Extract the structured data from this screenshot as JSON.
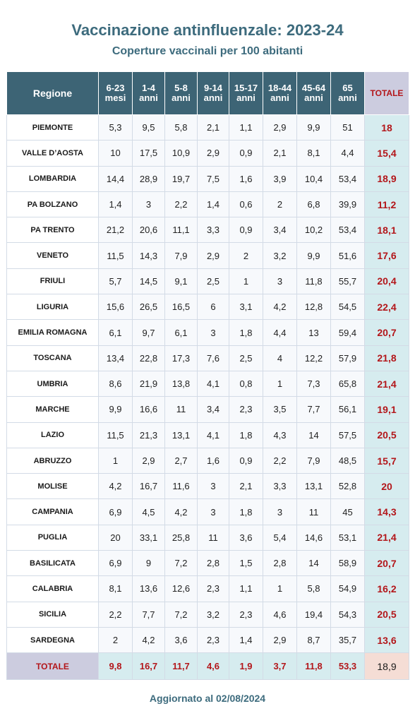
{
  "header": {
    "title": "Vaccinazione antinfluenzale: 2023-24",
    "subtitle": "Coperture vaccinali per 100 abitanti"
  },
  "footer": {
    "updated": "Aggiornato al 02/08/2024"
  },
  "colors": {
    "title": "#3d6b7d",
    "header_bg": "#3d6475",
    "totale_header_bg": "#ccccdf",
    "accent_red": "#b3161a",
    "total_column_bg": "#d6ecef",
    "grand_total_bg": "#f5ddd5"
  },
  "chart_data": {
    "type": "table",
    "title": "Vaccinazione antinfluenzale: 2023-24",
    "subtitle": "Coperture vaccinali per 100 abitanti",
    "columns": [
      {
        "line1": "Regione",
        "line2": ""
      },
      {
        "line1": "6-23",
        "line2": "mesi"
      },
      {
        "line1": "1-4",
        "line2": "anni"
      },
      {
        "line1": "5-8",
        "line2": "anni"
      },
      {
        "line1": "9-14",
        "line2": "anni"
      },
      {
        "line1": "15-17",
        "line2": "anni"
      },
      {
        "line1": "18-44",
        "line2": "anni"
      },
      {
        "line1": "45-64",
        "line2": "anni"
      },
      {
        "line1": "65",
        "line2": "anni"
      },
      {
        "line1": "TOTALE",
        "line2": ""
      }
    ],
    "rows": [
      {
        "region": "PIEMONTE",
        "values": [
          "5,3",
          "9,5",
          "5,8",
          "2,1",
          "1,1",
          "2,9",
          "9,9",
          "51"
        ],
        "total": "18"
      },
      {
        "region": "VALLE D’AOSTA",
        "values": [
          "10",
          "17,5",
          "10,9",
          "2,9",
          "0,9",
          "2,1",
          "8,1",
          "4,4"
        ],
        "total": "15,4"
      },
      {
        "region": "LOMBARDIA",
        "values": [
          "14,4",
          "28,9",
          "19,7",
          "7,5",
          "1,6",
          "3,9",
          "10,4",
          "53,4"
        ],
        "total": "18,9"
      },
      {
        "region": "PA BOLZANO",
        "values": [
          "1,4",
          "3",
          "2,2",
          "1,4",
          "0,6",
          "2",
          "6,8",
          "39,9"
        ],
        "total": "11,2"
      },
      {
        "region": "PA TRENTO",
        "values": [
          "21,2",
          "20,6",
          "11,1",
          "3,3",
          "0,9",
          "3,4",
          "10,2",
          "53,4"
        ],
        "total": "18,1"
      },
      {
        "region": "VENETO",
        "values": [
          "11,5",
          "14,3",
          "7,9",
          "2,9",
          "2",
          "3,2",
          "9,9",
          "51,6"
        ],
        "total": "17,6"
      },
      {
        "region": "FRIULI",
        "values": [
          "5,7",
          "14,5",
          "9,1",
          "2,5",
          "1",
          "3",
          "11,8",
          "55,7"
        ],
        "total": "20,4"
      },
      {
        "region": "LIGURIA",
        "values": [
          "15,6",
          "26,5",
          "16,5",
          "6",
          "3,1",
          "4,2",
          "12,8",
          "54,5"
        ],
        "total": "22,4"
      },
      {
        "region": "EMILIA ROMAGNA",
        "values": [
          "6,1",
          "9,7",
          "6,1",
          "3",
          "1,8",
          "4,4",
          "13",
          "59,4"
        ],
        "total": "20,7"
      },
      {
        "region": "TOSCANA",
        "values": [
          "13,4",
          "22,8",
          "17,3",
          "7,6",
          "2,5",
          "4",
          "12,2",
          "57,9"
        ],
        "total": "21,8"
      },
      {
        "region": "UMBRIA",
        "values": [
          "8,6",
          "21,9",
          "13,8",
          "4,1",
          "0,8",
          "1",
          "7,3",
          "65,8"
        ],
        "total": "21,4"
      },
      {
        "region": "MARCHE",
        "values": [
          "9,9",
          "16,6",
          "11",
          "3,4",
          "2,3",
          "3,5",
          "7,7",
          "56,1"
        ],
        "total": "19,1"
      },
      {
        "region": "LAZIO",
        "values": [
          "11,5",
          "21,3",
          "13,1",
          "4,1",
          "1,8",
          "4,3",
          "14",
          "57,5"
        ],
        "total": "20,5"
      },
      {
        "region": "ABRUZZO",
        "values": [
          "1",
          "2,9",
          "2,7",
          "1,6",
          "0,9",
          "2,2",
          "7,9",
          "48,5"
        ],
        "total": "15,7"
      },
      {
        "region": "MOLISE",
        "values": [
          "4,2",
          "16,7",
          "11,6",
          "3",
          "2,1",
          "3,3",
          "13,1",
          "52,8"
        ],
        "total": "20"
      },
      {
        "region": "CAMPANIA",
        "values": [
          "6,9",
          "4,5",
          "4,2",
          "3",
          "1,8",
          "3",
          "11",
          "45"
        ],
        "total": "14,3"
      },
      {
        "region": "PUGLIA",
        "values": [
          "20",
          "33,1",
          "25,8",
          "11",
          "3,6",
          "5,4",
          "14,6",
          "53,1"
        ],
        "total": "21,4"
      },
      {
        "region": "BASILICATA",
        "values": [
          "6,9",
          "9",
          "7,2",
          "2,8",
          "1,5",
          "2,8",
          "14",
          "58,9"
        ],
        "total": "20,7"
      },
      {
        "region": "CALABRIA",
        "values": [
          "8,1",
          "13,6",
          "12,6",
          "2,3",
          "1,1",
          "1",
          "5,8",
          "54,9"
        ],
        "total": "16,2"
      },
      {
        "region": "SICILIA",
        "values": [
          "2,2",
          "7,7",
          "7,2",
          "3,2",
          "2,3",
          "4,6",
          "19,4",
          "54,3"
        ],
        "total": "20,5"
      },
      {
        "region": "SARDEGNA",
        "values": [
          "2",
          "4,2",
          "3,6",
          "2,3",
          "1,4",
          "2,9",
          "8,7",
          "35,7"
        ],
        "total": "13,6"
      }
    ],
    "totals": {
      "label": "TOTALE",
      "values": [
        "9,8",
        "16,7",
        "11,7",
        "4,6",
        "1,9",
        "3,7",
        "11,8",
        "53,3"
      ],
      "total": "18,9"
    }
  }
}
